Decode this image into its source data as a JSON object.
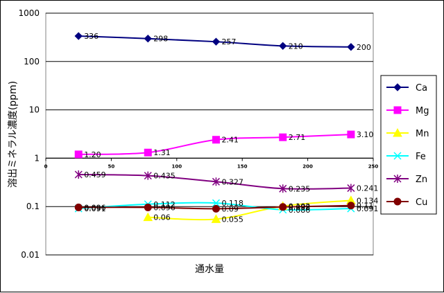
{
  "chart_data": {
    "type": "line",
    "title": "",
    "xlabel": "通水量",
    "ylabel": "溶出ミネラル濃度(ppm)",
    "yscale": "log",
    "ylim": [
      0.01,
      1000
    ],
    "xlim": [
      0,
      250
    ],
    "y_ticks": [
      "0.01",
      "0.1",
      "1",
      "10",
      "100",
      "1000"
    ],
    "x_ticks": [
      "0",
      "50",
      "100",
      "150",
      "200",
      "250"
    ],
    "grid": "horizontal",
    "legend_position": "right",
    "x": [
      25,
      78,
      130,
      181,
      233
    ],
    "series": [
      {
        "name": "Ca",
        "color": "#000080",
        "marker": "diamond",
        "values": [
          336,
          298,
          257,
          210,
          200
        ],
        "labels": [
          "336",
          "298",
          "257",
          "210",
          "200"
        ]
      },
      {
        "name": "Mg",
        "color": "#ff00ff",
        "marker": "square",
        "values": [
          1.2,
          1.31,
          2.41,
          2.71,
          3.1
        ],
        "labels": [
          "1.20",
          "1.31",
          "2.41",
          "2.71",
          "3.10"
        ]
      },
      {
        "name": "Mn",
        "color": "#ffff00",
        "marker": "triangle",
        "values": [
          null,
          0.06,
          0.055,
          0.102,
          0.134
        ],
        "labels": [
          "",
          "0.06",
          "0.055",
          "0.102",
          "0.134"
        ]
      },
      {
        "name": "Fe",
        "color": "#00ffff",
        "marker": "x",
        "values": [
          0.091,
          0.112,
          0.118,
          0.086,
          0.091
        ],
        "labels": [
          "0.091",
          "0.112",
          "0.118",
          "0.086",
          "0.091"
        ]
      },
      {
        "name": "Zn",
        "color": "#800080",
        "marker": "star",
        "values": [
          0.459,
          0.435,
          0.327,
          0.235,
          0.241
        ],
        "labels": [
          "0.459",
          "0.435",
          "0.327",
          "0.235",
          "0.241"
        ]
      },
      {
        "name": "Cu",
        "color": "#800000",
        "marker": "circle",
        "values": [
          0.096,
          0.096,
          0.09,
          0.098,
          0.105
        ],
        "labels": [
          "0.096",
          "0.096",
          "0.09",
          "0.098",
          "0.11"
        ]
      }
    ]
  }
}
